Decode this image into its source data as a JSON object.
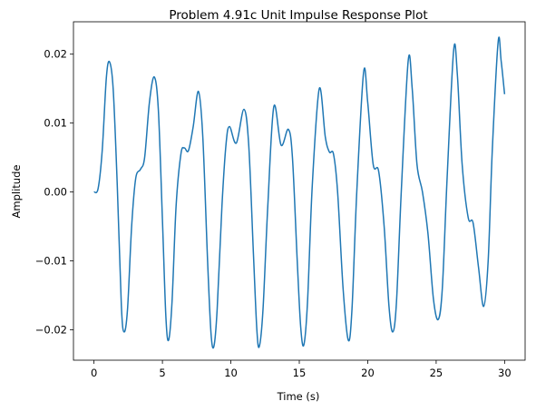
{
  "chart_data": {
    "type": "line",
    "title": "Problem 4.91c Unit Impulse Response Plot",
    "xlabel": "Time (s)",
    "ylabel": "Amplitude",
    "color": "#1f77b4",
    "xlim": [
      -1.5,
      31.5
    ],
    "ylim": [
      -0.0244,
      0.0247
    ],
    "xticks": [
      0,
      5,
      10,
      15,
      20,
      25,
      30
    ],
    "yticks": [
      {
        "value": -0.02,
        "label": "−0.02"
      },
      {
        "value": -0.01,
        "label": "−0.01"
      },
      {
        "value": 0,
        "label": "0.00"
      },
      0.01,
      0.02
    ],
    "x": [
      0,
      0.3,
      0.6,
      0.9,
      1.13,
      1.4,
      1.7,
      2.0,
      2.2,
      2.45,
      2.75,
      3.05,
      3.4,
      3.7,
      4.05,
      4.4,
      4.7,
      5.0,
      5.25,
      5.45,
      5.7,
      6.0,
      6.35,
      6.6,
      6.9,
      7.25,
      7.63,
      7.95,
      8.3,
      8.55,
      8.76,
      9.0,
      9.35,
      9.65,
      9.9,
      10.4,
      10.95,
      11.3,
      11.65,
      11.9,
      12.08,
      12.35,
      12.7,
      13.14,
      13.67,
      14.2,
      14.5,
      14.85,
      15.1,
      15.33,
      15.6,
      15.95,
      16.46,
      16.9,
      17.2,
      17.5,
      17.8,
      18.2,
      18.58,
      18.85,
      19.2,
      19.7,
      20.0,
      20.4,
      20.8,
      21.2,
      21.55,
      21.83,
      22.1,
      22.45,
      22.96,
      23.25,
      23.6,
      24.0,
      24.4,
      24.8,
      25.15,
      25.45,
      25.8,
      26.28,
      26.55,
      26.9,
      27.34,
      27.7,
      28.1,
      28.47,
      28.8,
      29.1,
      29.53,
      29.75,
      30.0
    ],
    "values": [
      0,
      0.0005,
      0.006,
      0.0165,
      0.0189,
      0.015,
      0.001,
      -0.0165,
      -0.0203,
      -0.017,
      -0.005,
      0.002,
      0.0033,
      0.005,
      0.013,
      0.0167,
      0.012,
      -0.004,
      -0.018,
      -0.0215,
      -0.016,
      -0.002,
      0.0055,
      0.0064,
      0.006,
      0.0095,
      0.0146,
      0.008,
      -0.01,
      -0.0205,
      -0.0224,
      -0.017,
      -0.002,
      0.007,
      0.0095,
      0.0071,
      0.012,
      0.007,
      -0.009,
      -0.02,
      -0.0224,
      -0.017,
      -0.002,
      0.0124,
      0.0068,
      0.0091,
      0.005,
      -0.01,
      -0.0195,
      -0.0222,
      -0.016,
      0.001,
      0.015,
      0.008,
      0.0058,
      0.0055,
      0.0,
      -0.014,
      -0.0215,
      -0.017,
      0.0,
      0.0174,
      0.013,
      0.004,
      0.003,
      -0.005,
      -0.0165,
      -0.0203,
      -0.016,
      0.0,
      0.0191,
      0.015,
      0.004,
      0.0,
      -0.006,
      -0.0155,
      -0.0185,
      -0.014,
      0.002,
      0.0206,
      0.017,
      0.004,
      -0.0037,
      -0.0045,
      -0.011,
      -0.0166,
      -0.01,
      0.006,
      0.0218,
      0.019,
      0.0142
    ]
  }
}
